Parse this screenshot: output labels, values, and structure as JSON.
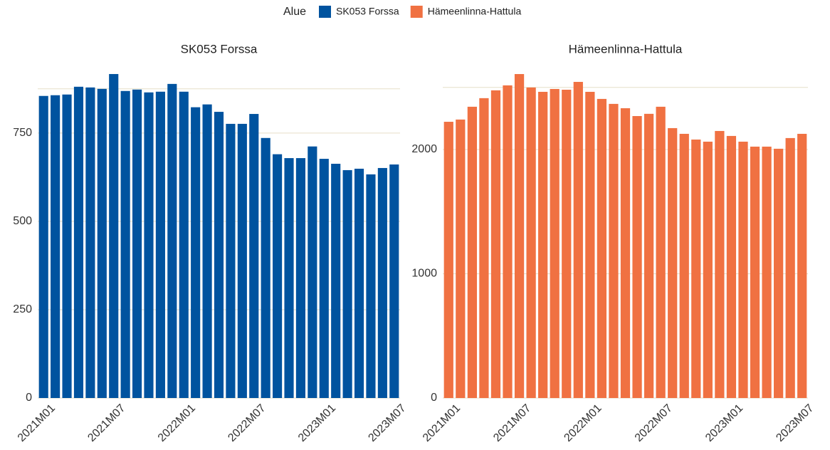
{
  "legend_title": "Alue",
  "chart_data": [
    {
      "type": "bar",
      "title": "SK053 Forssa",
      "categories": [
        "2021M01",
        null,
        null,
        null,
        null,
        null,
        "2021M07",
        null,
        null,
        null,
        null,
        null,
        "2022M01",
        null,
        null,
        null,
        null,
        null,
        "2022M07",
        null,
        null,
        null,
        null,
        null,
        "2023M01",
        null,
        null,
        null,
        null,
        null,
        "2023M07"
      ],
      "series": [
        {
          "name": "SK053 Forssa",
          "color": "#00539f",
          "values": [
            855,
            857,
            859,
            881,
            879,
            875,
            917,
            869,
            873,
            865,
            867,
            889,
            867,
            823,
            831,
            810,
            776,
            776,
            804,
            736,
            690,
            679,
            679,
            712,
            677,
            663,
            645,
            649,
            633,
            651,
            661
          ]
        }
      ],
      "ylim": [
        0,
        925
      ],
      "yticks": [
        0,
        250,
        500,
        750,
        875
      ],
      "grid": true
    },
    {
      "type": "bar",
      "title": "Hämeenlinna-Hattula",
      "categories": [
        "2021M01",
        null,
        null,
        null,
        null,
        null,
        "2021M07",
        null,
        null,
        null,
        null,
        null,
        "2022M01",
        null,
        null,
        null,
        null,
        null,
        "2022M07",
        null,
        null,
        null,
        null,
        null,
        "2023M01",
        null,
        null,
        null,
        null,
        null,
        "2023M07"
      ],
      "series": [
        {
          "name": "Hämeenlinna-Hattula",
          "color": "#f07142",
          "values": [
            2223,
            2241,
            2344,
            2413,
            2476,
            2516,
            2607,
            2499,
            2464,
            2487,
            2481,
            2544,
            2464,
            2407,
            2367,
            2332,
            2269,
            2287,
            2344,
            2172,
            2126,
            2080,
            2063,
            2149,
            2109,
            2063,
            2023,
            2023,
            2006,
            2092,
            2126
          ]
        }
      ],
      "ylim": [
        0,
        2630
      ],
      "yticks": [
        0,
        1000,
        2000,
        2500
      ],
      "grid": true
    }
  ]
}
